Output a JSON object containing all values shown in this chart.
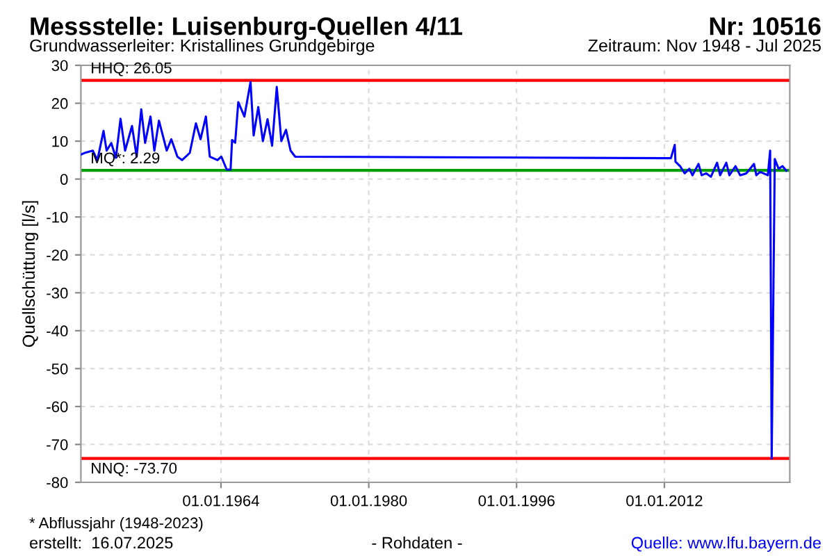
{
  "chart_data": {
    "type": "line",
    "title": "Messstelle: Luisenburg-Quellen 4/11",
    "subtitle": "Grundwasserleiter: Kristallines Grundgebirge",
    "ylabel": "Quellschüttung [l/s]",
    "annotations": [
      "Nr: 10516",
      "Zeitraum: Nov 1948 - Jul 2025",
      "* Abflussjahr (1948-2023)",
      "erstellt:  16.07.2025",
      "- Rohdaten -",
      "Quelle: www.lfu.bayern.de"
    ],
    "x": [
      "1948-11",
      "1949-05",
      "1950-02",
      "1950-08",
      "1951-04",
      "1951-08",
      "1952-02",
      "1952-08",
      "1953-02",
      "1953-08",
      "1954-05",
      "1954-11",
      "1955-05",
      "1955-10",
      "1956-05",
      "1956-10",
      "1957-04",
      "1958-02",
      "1958-08",
      "1959-04",
      "1959-10",
      "1960-08",
      "1961-04",
      "1961-10",
      "1962-05",
      "1962-10",
      "1963-08",
      "1964-01",
      "1964-08",
      "1965-01",
      "1965-03",
      "1965-07",
      "1965-11",
      "1966-07",
      "1967-03",
      "1967-07",
      "1968-01",
      "1968-07",
      "1969-01",
      "1969-07",
      "1970-01",
      "1970-07",
      "1971-01",
      "1971-07",
      "1972-01",
      "2012-06",
      "2012-09",
      "2013-02",
      "2013-03",
      "2013-09",
      "2014-03",
      "2014-09",
      "2015-01",
      "2015-09",
      "2016-01",
      "2016-07",
      "2017-01",
      "2017-09",
      "2018-01",
      "2018-09",
      "2019-01",
      "2019-09",
      "2020-03",
      "2020-11",
      "2021-09",
      "2021-12",
      "2022-05",
      "2023-03",
      "2023-06",
      "2023-08",
      "2023-12",
      "2024-05",
      "2024-10",
      "2025-03"
    ],
    "series": [
      {
        "color": "#0000ff",
        "values": [
          6.5,
          7.0,
          7.5,
          5.0,
          12.7,
          7.5,
          9.5,
          5.6,
          15.9,
          7.5,
          14.0,
          5.9,
          18.4,
          9.5,
          16.5,
          7.5,
          15.4,
          7.5,
          10.5,
          5.9,
          5.0,
          6.9,
          14.7,
          10.5,
          16.5,
          5.9,
          5.0,
          5.9,
          2.5,
          2.5,
          10.3,
          9.6,
          20.3,
          16.5,
          25.6,
          11.5,
          19.0,
          10.0,
          15.8,
          8.8,
          24.3,
          10.0,
          13.0,
          7.5,
          5.9,
          5.5,
          5.5,
          9.0,
          4.6,
          3.4,
          1.5,
          2.7,
          1.0,
          4.0,
          1.0,
          1.5,
          0.6,
          4.3,
          1.0,
          4.3,
          1.0,
          3.4,
          1.0,
          1.5,
          4.0,
          1.0,
          1.9,
          1.0,
          7.5,
          -73.7,
          5.3,
          2.7,
          3.4,
          2.2
        ]
      }
    ],
    "xlim": [
      "1948-11-01",
      "2025-07-31"
    ],
    "xticks": [
      {
        "value": "1964-01-01",
        "label": "01.01.1964"
      },
      {
        "value": "1980-01-01",
        "label": "01.01.1980"
      },
      {
        "value": "1996-01-01",
        "label": "01.01.1996"
      },
      {
        "value": "2012-01-01",
        "label": "01.01.2012"
      }
    ],
    "ylim": [
      -80,
      30
    ],
    "yticks": [
      -80,
      -70,
      -60,
      -50,
      -40,
      -30,
      -20,
      -10,
      0,
      10,
      20,
      30
    ],
    "ref_lines": [
      {
        "axis": "y",
        "value": 26.05,
        "label": "HHQ: 26.05",
        "color": "#ff0000"
      },
      {
        "axis": "y",
        "value": 2.29,
        "label": "MQ*: 2.29",
        "color": "#00a000"
      },
      {
        "axis": "y",
        "value": -73.7,
        "label": "NNQ: -73.70",
        "color": "#ff0000"
      }
    ],
    "grid": true,
    "legend": false
  }
}
